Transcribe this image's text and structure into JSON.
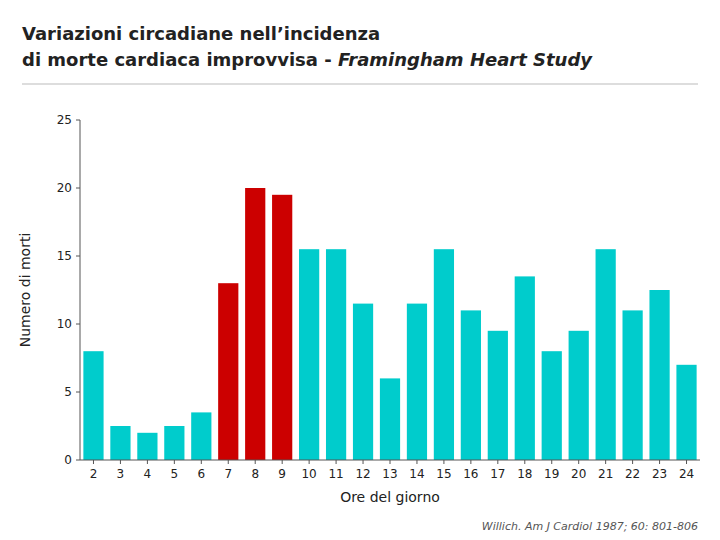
{
  "chart_data": {
    "type": "bar",
    "title": "Variazioni circadiane nell’incidenza",
    "subtitle": [
      "di morte cardiaca improvvisa - ",
      "Framingham Heart Study"
    ],
    "xlabel": "Ore del giorno",
    "ylabel": "Numero di morti",
    "annotations": [
      "Willich. Am J Cardiol 1987; 60: 801-806"
    ],
    "categories": [
      "2",
      "3",
      "4",
      "5",
      "6",
      "7",
      "8",
      "9",
      "10",
      "11",
      "12",
      "13",
      "14",
      "15",
      "16",
      "17",
      "18",
      "19",
      "20",
      "21",
      "22",
      "23",
      "24"
    ],
    "values": [
      8,
      2.5,
      2,
      2.5,
      3.5,
      13,
      20,
      19.5,
      15.5,
      15.5,
      11.5,
      6,
      11.5,
      15.5,
      11,
      9.5,
      13.5,
      8,
      9.5,
      15.5,
      11,
      12.5,
      7
    ],
    "colors": [
      "#00CCCC",
      "#00CCCC",
      "#00CCCC",
      "#00CCCC",
      "#00CCCC",
      "#CC0000",
      "#CC0000",
      "#CC0000",
      "#00CCCC",
      "#00CCCC",
      "#00CCCC",
      "#00CCCC",
      "#00CCCC",
      "#00CCCC",
      "#00CCCC",
      "#00CCCC",
      "#00CCCC",
      "#00CCCC",
      "#00CCCC",
      "#00CCCC",
      "#00CCCC",
      "#00CCCC",
      "#00CCCC"
    ],
    "ylim": [
      0,
      25
    ],
    "yticks": [
      0,
      5,
      10,
      15,
      20,
      25
    ],
    "grid": false
  }
}
